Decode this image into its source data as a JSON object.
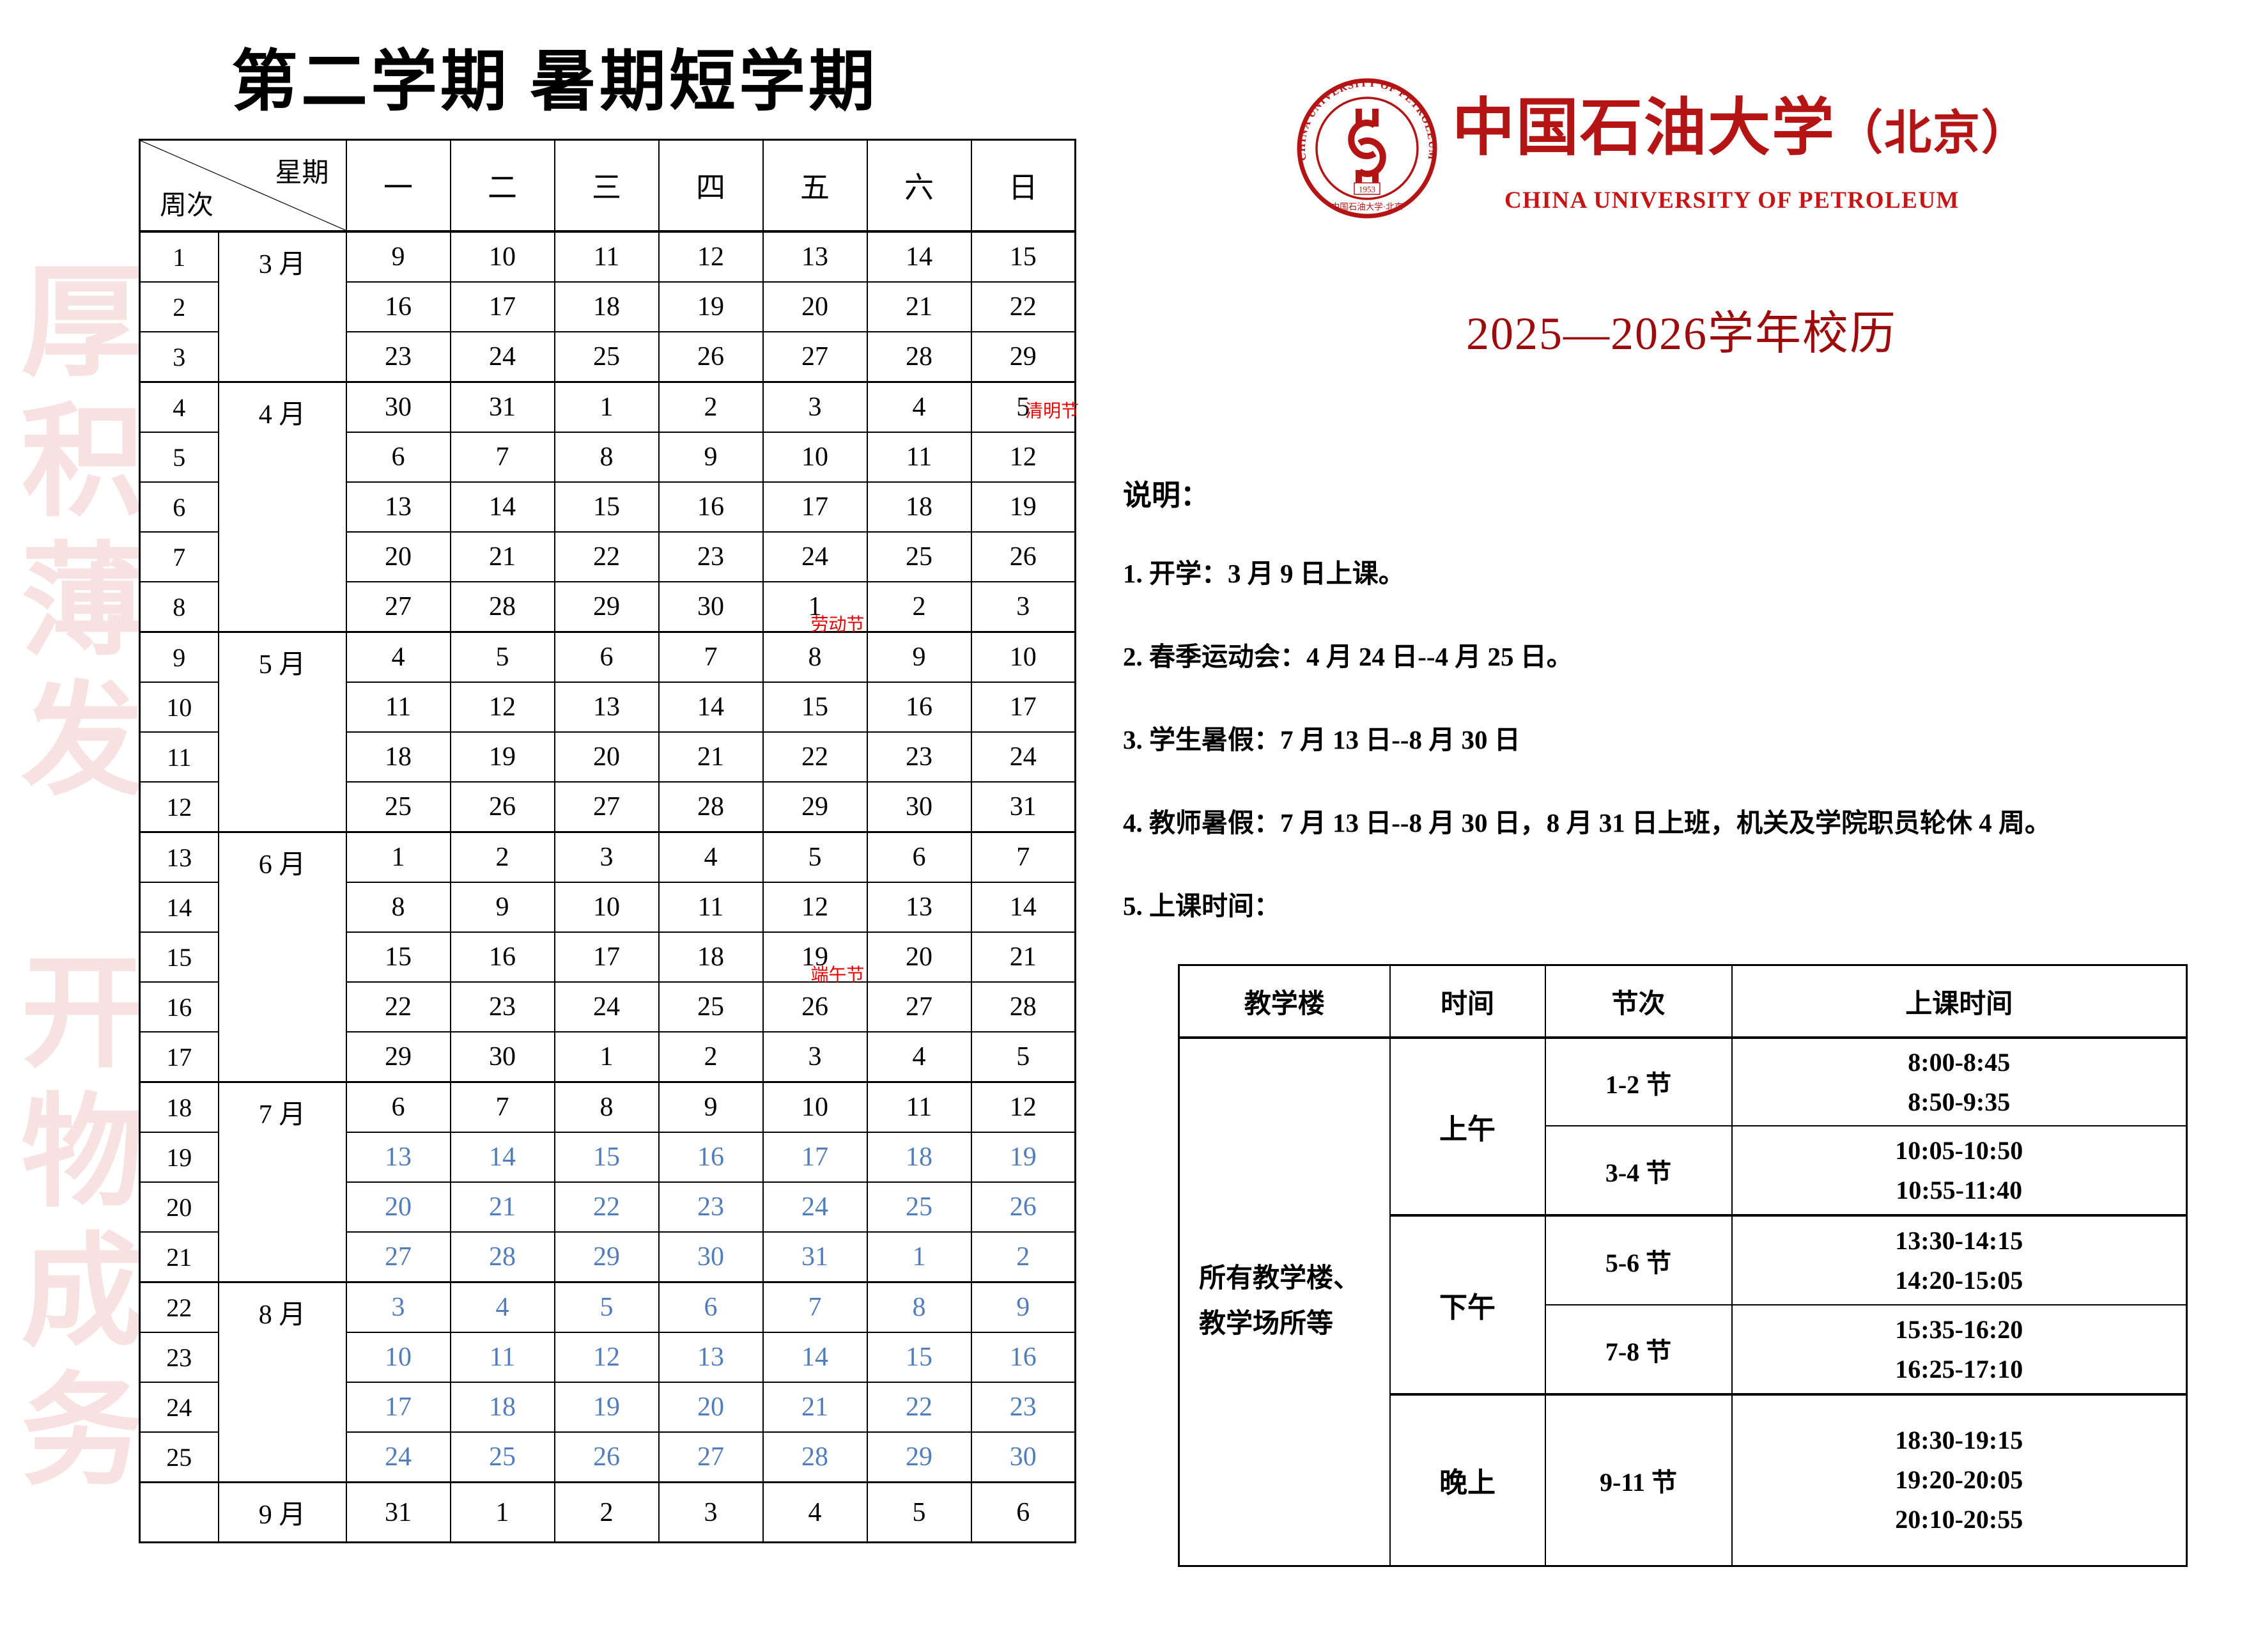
{
  "page_title": "第二学期 暑期短学期",
  "main_title": "2025—2026学年校历",
  "watermark": {
    "line1": "厚积薄发",
    "line2": "开物成务"
  },
  "logo": {
    "seal_text_en": "CHINA UNIVERSITY OF PETROLEUM",
    "seal_text_cn": "中国石油大学·北京",
    "seal_year": "1953",
    "name_cn": "中国石油大学",
    "name_suffix": "（北京）",
    "name_en": "CHINA UNIVERSITY OF PETROLEUM"
  },
  "colors": {
    "brand_red": "#b51414",
    "title_dark_red": "#9c0c0c",
    "holiday_red": "#e60000",
    "vacation_blue": "#527dbd",
    "watermark_pink": "#f8e2e1"
  },
  "notes": {
    "heading": "说明：",
    "items": [
      "1. 开学：3 月 9 日上课。",
      "2. 春季运动会：4 月 24 日--4 月 25 日。",
      "3. 学生暑假：7 月 13 日--8 月 30 日",
      "4. 教师暑假：7 月 13 日--8 月 30 日，8 月 31 日上班，机关及学院职员轮休 4 周。",
      "5. 上课时间："
    ]
  },
  "calendar": {
    "corner": {
      "top": "星期",
      "bottom": "周次"
    },
    "day_headers": [
      "一",
      "二",
      "三",
      "四",
      "五",
      "六",
      "日"
    ],
    "weeks": [
      {
        "week": "1",
        "month": "3 月",
        "month_span": 3,
        "days": [
          "9",
          "10",
          "11",
          "12",
          "13",
          "14",
          "15"
        ]
      },
      {
        "week": "2",
        "days": [
          "16",
          "17",
          "18",
          "19",
          "20",
          "21",
          "22"
        ]
      },
      {
        "week": "3",
        "days": [
          "23",
          "24",
          "25",
          "26",
          "27",
          "28",
          "29"
        ]
      },
      {
        "week": "4",
        "month": "4 月",
        "month_span": 5,
        "days": [
          "30",
          "31",
          "1",
          "2",
          "3",
          "4",
          "5"
        ],
        "holidays": [
          {
            "day": 6,
            "text": "清明节",
            "pos": "inline"
          }
        ]
      },
      {
        "week": "5",
        "days": [
          "6",
          "7",
          "8",
          "9",
          "10",
          "11",
          "12"
        ]
      },
      {
        "week": "6",
        "days": [
          "13",
          "14",
          "15",
          "16",
          "17",
          "18",
          "19"
        ]
      },
      {
        "week": "7",
        "days": [
          "20",
          "21",
          "22",
          "23",
          "24",
          "25",
          "26"
        ]
      },
      {
        "week": "8",
        "days": [
          "27",
          "28",
          "29",
          "30",
          "1",
          "2",
          "3"
        ],
        "holidays": [
          {
            "day": 4,
            "text": "劳动节",
            "pos": "below"
          }
        ]
      },
      {
        "week": "9",
        "month": "5 月",
        "month_span": 4,
        "days": [
          "4",
          "5",
          "6",
          "7",
          "8",
          "9",
          "10"
        ]
      },
      {
        "week": "10",
        "days": [
          "11",
          "12",
          "13",
          "14",
          "15",
          "16",
          "17"
        ]
      },
      {
        "week": "11",
        "days": [
          "18",
          "19",
          "20",
          "21",
          "22",
          "23",
          "24"
        ]
      },
      {
        "week": "12",
        "days": [
          "25",
          "26",
          "27",
          "28",
          "29",
          "30",
          "31"
        ]
      },
      {
        "week": "13",
        "month": "6 月",
        "month_span": 5,
        "days": [
          "1",
          "2",
          "3",
          "4",
          "5",
          "6",
          "7"
        ]
      },
      {
        "week": "14",
        "days": [
          "8",
          "9",
          "10",
          "11",
          "12",
          "13",
          "14"
        ]
      },
      {
        "week": "15",
        "days": [
          "15",
          "16",
          "17",
          "18",
          "19",
          "20",
          "21"
        ],
        "holidays": [
          {
            "day": 4,
            "text": "端午节",
            "pos": "below"
          }
        ]
      },
      {
        "week": "16",
        "days": [
          "22",
          "23",
          "24",
          "25",
          "26",
          "27",
          "28"
        ]
      },
      {
        "week": "17",
        "days": [
          "29",
          "30",
          "1",
          "2",
          "3",
          "4",
          "5"
        ]
      },
      {
        "week": "18",
        "month": "7 月",
        "month_span": 4,
        "days": [
          "6",
          "7",
          "8",
          "9",
          "10",
          "11",
          "12"
        ]
      },
      {
        "week": "19",
        "blue": true,
        "days": [
          "13",
          "14",
          "15",
          "16",
          "17",
          "18",
          "19"
        ]
      },
      {
        "week": "20",
        "blue": true,
        "days": [
          "20",
          "21",
          "22",
          "23",
          "24",
          "25",
          "26"
        ]
      },
      {
        "week": "21",
        "blue": true,
        "days": [
          "27",
          "28",
          "29",
          "30",
          "31",
          "1",
          "2"
        ]
      },
      {
        "week": "22",
        "month": "8 月",
        "month_span": 4,
        "blue": true,
        "days": [
          "3",
          "4",
          "5",
          "6",
          "7",
          "8",
          "9"
        ]
      },
      {
        "week": "23",
        "blue": true,
        "days": [
          "10",
          "11",
          "12",
          "13",
          "14",
          "15",
          "16"
        ]
      },
      {
        "week": "24",
        "blue": true,
        "days": [
          "17",
          "18",
          "19",
          "20",
          "21",
          "22",
          "23"
        ]
      },
      {
        "week": "25",
        "blue": true,
        "days": [
          "24",
          "25",
          "26",
          "27",
          "28",
          "29",
          "30"
        ]
      },
      {
        "week": "",
        "month": "9 月",
        "month_span": 1,
        "days": [
          "31",
          "1",
          "2",
          "3",
          "4",
          "5",
          "6"
        ]
      }
    ]
  },
  "schedule": {
    "headers": [
      "教学楼",
      "时间",
      "节次",
      "上课时间"
    ],
    "building": [
      "所有教学楼、",
      "教学场所等"
    ],
    "groups": [
      {
        "label": "上午",
        "rows": [
          {
            "period": "1-2 节",
            "times": [
              "8:00-8:45",
              "8:50-9:35"
            ]
          },
          {
            "period": "3-4 节",
            "times": [
              "10:05-10:50",
              "10:55-11:40"
            ]
          }
        ]
      },
      {
        "label": "下午",
        "rows": [
          {
            "period": "5-6 节",
            "times": [
              "13:30-14:15",
              "14:20-15:05"
            ]
          },
          {
            "period": "7-8 节",
            "times": [
              "15:35-16:20",
              "16:25-17:10"
            ]
          }
        ]
      },
      {
        "label": "晚上",
        "rows": [
          {
            "period": "9-11 节",
            "times": [
              "18:30-19:15",
              "19:20-20:05",
              "20:10-20:55"
            ]
          }
        ]
      }
    ]
  }
}
